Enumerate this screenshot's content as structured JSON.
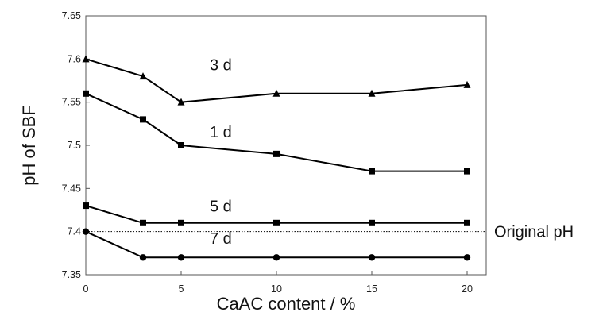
{
  "chart_data": {
    "type": "line",
    "title": "",
    "xlabel": "CaAC content / %",
    "ylabel": "pH of SBF",
    "xlim": [
      0,
      21
    ],
    "ylim": [
      7.35,
      7.65
    ],
    "x_ticks": [
      0,
      5,
      10,
      15,
      20
    ],
    "y_ticks": [
      7.35,
      7.4,
      7.45,
      7.5,
      7.55,
      7.6,
      7.65
    ],
    "x_tick_labels": [
      "0",
      "5",
      "10",
      "15",
      "20"
    ],
    "y_tick_labels": [
      "7.35",
      "7.4",
      "7.45",
      "7.5",
      "7.55",
      "7.6",
      "7.65"
    ],
    "grid": false,
    "legend": "none",
    "x": [
      0,
      3,
      5,
      10,
      15,
      20
    ],
    "series": [
      {
        "name": "3 d",
        "marker": "triangle",
        "values": [
          7.6,
          7.58,
          7.55,
          7.56,
          7.56,
          7.57
        ],
        "label_at": [
          6.5,
          7.587
        ]
      },
      {
        "name": "1 d",
        "marker": "square",
        "values": [
          7.56,
          7.53,
          7.5,
          7.49,
          7.47,
          7.47
        ],
        "label_at": [
          6.5,
          7.509
        ]
      },
      {
        "name": "5 d",
        "marker": "square",
        "values": [
          7.43,
          7.41,
          7.41,
          7.41,
          7.41,
          7.41
        ],
        "label_at": [
          6.5,
          7.423
        ]
      },
      {
        "name": "7 d",
        "marker": "circle",
        "values": [
          7.4,
          7.37,
          7.37,
          7.37,
          7.37,
          7.37
        ],
        "label_at": [
          6.5,
          7.386
        ]
      }
    ],
    "reference_line": {
      "value": 7.4,
      "label": "Original pH",
      "style": "dotted"
    }
  },
  "colors": {
    "line": "#000000",
    "axis": "#555555",
    "text": "#111111"
  }
}
